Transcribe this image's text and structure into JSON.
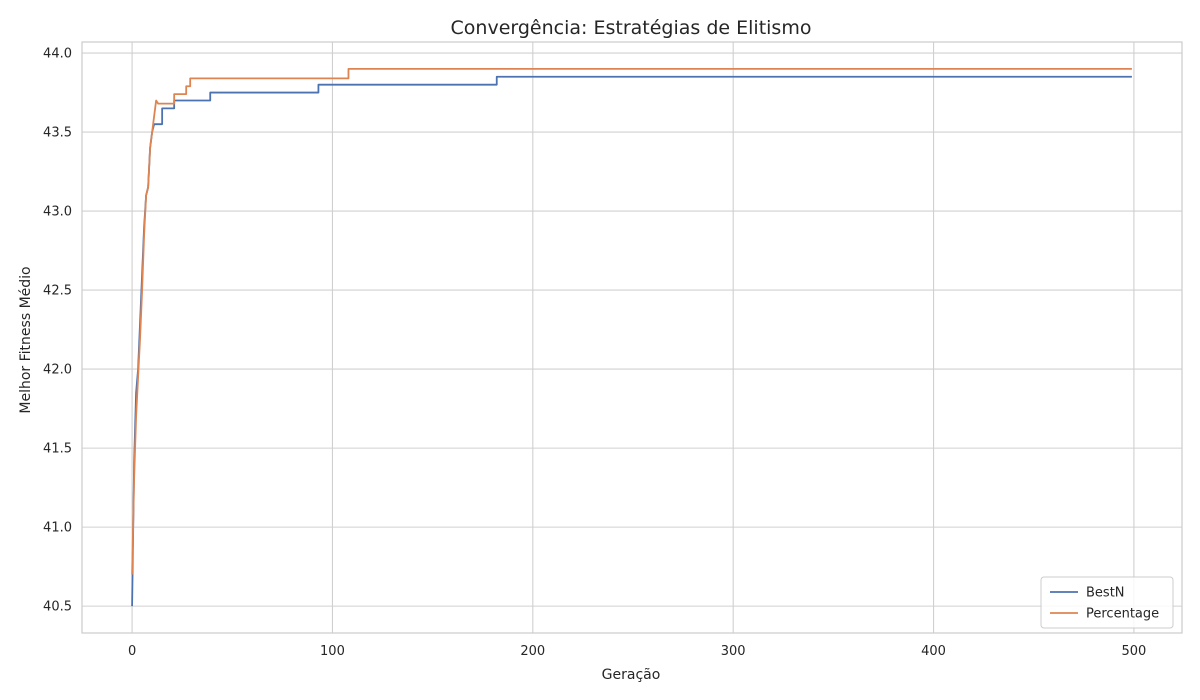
{
  "chart_data": {
    "type": "line",
    "title": "Convergência: Estratégias de Elitismo",
    "xlabel": "Geração",
    "ylabel": "Melhor Fitness Médio",
    "xlim": [
      -25,
      524
    ],
    "ylim": [
      40.33,
      44.07
    ],
    "xticks": [
      0,
      100,
      200,
      300,
      400,
      500
    ],
    "yticks": [
      40.5,
      41.0,
      41.5,
      42.0,
      42.5,
      43.0,
      43.5,
      44.0
    ],
    "xtick_labels": [
      "0",
      "100",
      "200",
      "300",
      "400",
      "500"
    ],
    "ytick_labels": [
      "40.5",
      "41.0",
      "41.5",
      "42.0",
      "42.5",
      "43.0",
      "43.5",
      "44.0"
    ],
    "grid": true,
    "legend_position": "bottom-right",
    "series": [
      {
        "name": "BestN",
        "color": "#4c72b0",
        "step": true,
        "points": [
          [
            0,
            40.5
          ],
          [
            1,
            41.4
          ],
          [
            2,
            41.85
          ],
          [
            3,
            42.0
          ],
          [
            4,
            42.3
          ],
          [
            5,
            42.6
          ],
          [
            6,
            42.9
          ],
          [
            7,
            43.1
          ],
          [
            8,
            43.15
          ],
          [
            9,
            43.4
          ],
          [
            10,
            43.5
          ],
          [
            11,
            43.55
          ],
          [
            15,
            43.65
          ],
          [
            21,
            43.7
          ],
          [
            39,
            43.75
          ],
          [
            93,
            43.8
          ],
          [
            182,
            43.85
          ],
          [
            499,
            43.85
          ]
        ]
      },
      {
        "name": "Percentage",
        "color": "#dd8452",
        "step": true,
        "points": [
          [
            0,
            40.7
          ],
          [
            1,
            41.3
          ],
          [
            2,
            41.7
          ],
          [
            3,
            41.95
          ],
          [
            4,
            42.2
          ],
          [
            5,
            42.5
          ],
          [
            6,
            42.85
          ],
          [
            7,
            43.1
          ],
          [
            8,
            43.15
          ],
          [
            9,
            43.4
          ],
          [
            10,
            43.5
          ],
          [
            11,
            43.6
          ],
          [
            12,
            43.7
          ],
          [
            13,
            43.68
          ],
          [
            21,
            43.74
          ],
          [
            27,
            43.79
          ],
          [
            29,
            43.84
          ],
          [
            108,
            43.9
          ],
          [
            499,
            43.9
          ]
        ]
      }
    ]
  }
}
